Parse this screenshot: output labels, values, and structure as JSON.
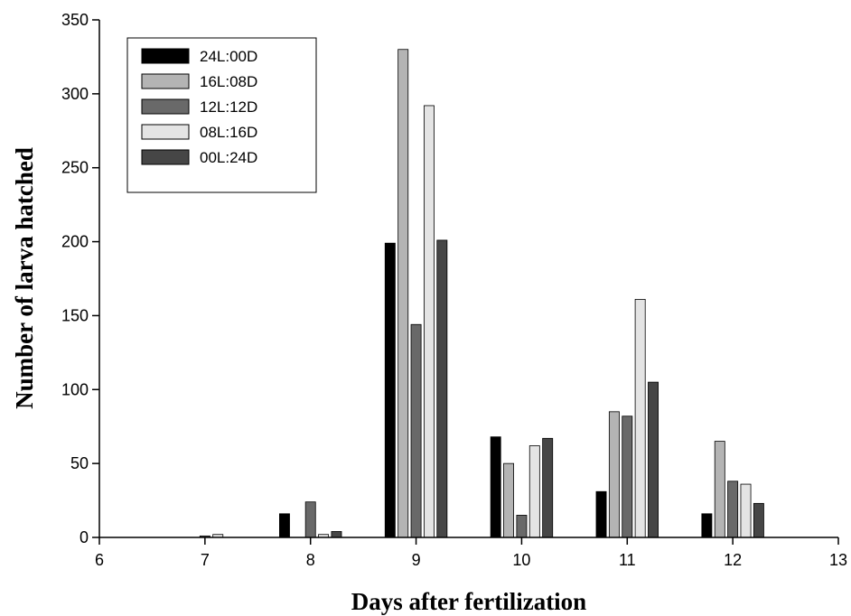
{
  "chart_data": {
    "type": "bar",
    "title": "",
    "xlabel": "Days after fertilization",
    "ylabel": "Number of larva hatched",
    "xlim": [
      6,
      13
    ],
    "ylim": [
      0,
      350
    ],
    "x_ticks": [
      6,
      7,
      8,
      9,
      10,
      11,
      12,
      13
    ],
    "y_ticks": [
      0,
      50,
      100,
      150,
      200,
      250,
      300,
      350
    ],
    "categories": [
      7,
      8,
      9,
      10,
      11,
      12
    ],
    "legend_position": "top-left",
    "grid": false,
    "series": [
      {
        "name": "24L:00D",
        "color": "#000000",
        "values": [
          0,
          16,
          199,
          68,
          31,
          16
        ]
      },
      {
        "name": "16L:08D",
        "color": "#b4b4b4",
        "values": [
          0,
          0,
          330,
          50,
          85,
          65
        ]
      },
      {
        "name": "12L:12D",
        "color": "#696969",
        "values": [
          1,
          24,
          144,
          15,
          82,
          38
        ]
      },
      {
        "name": "08L:16D",
        "color": "#e4e4e4",
        "values": [
          2,
          2,
          292,
          62,
          161,
          36
        ]
      },
      {
        "name": "00L:24D",
        "color": "#464646",
        "values": [
          0,
          4,
          201,
          67,
          105,
          23
        ]
      }
    ]
  }
}
